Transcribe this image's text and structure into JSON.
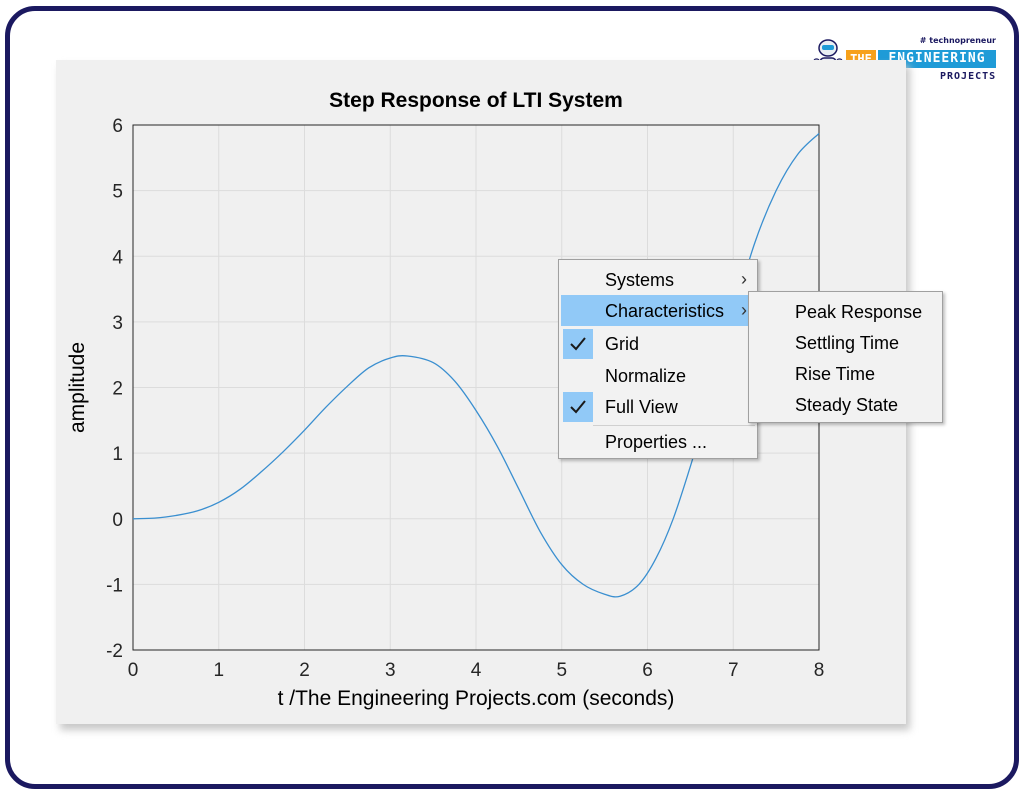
{
  "logo": {
    "tagline": "# technopreneur",
    "the": "THE",
    "engineering": "ENGINEERING",
    "projects": "PROJECTS"
  },
  "chart_data": {
    "type": "line",
    "title": "Step Response of LTI System",
    "xlabel": "t /The Engineering Projects.com (seconds)",
    "ylabel": "amplitude",
    "xlim": [
      0,
      8
    ],
    "ylim": [
      -2,
      6
    ],
    "xticks": [
      "0",
      "1",
      "2",
      "3",
      "4",
      "5",
      "6",
      "7",
      "8"
    ],
    "yticks": [
      "-2",
      "-1",
      "0",
      "1",
      "2",
      "3",
      "4",
      "5",
      "6"
    ],
    "grid": true,
    "line_color": "#3a8fd0",
    "series": [
      {
        "x": [
          0,
          0.25,
          0.5,
          0.75,
          1,
          1.25,
          1.5,
          1.75,
          2,
          2.25,
          2.5,
          2.75,
          3,
          3.2,
          3.5,
          3.75,
          4,
          4.25,
          4.5,
          4.75,
          5,
          5.25,
          5.5,
          5.68,
          5.9,
          6.1,
          6.3,
          6.5,
          6.75,
          7,
          7.25,
          7.5,
          7.75,
          8
        ],
        "y": [
          0,
          0.01,
          0.05,
          0.12,
          0.25,
          0.45,
          0.72,
          1.02,
          1.35,
          1.7,
          2.02,
          2.3,
          2.45,
          2.48,
          2.38,
          2.1,
          1.65,
          1.1,
          0.45,
          -0.2,
          -0.7,
          -1.0,
          -1.15,
          -1.18,
          -1.0,
          -0.6,
          0.0,
          0.8,
          1.9,
          3.1,
          4.2,
          5.0,
          5.55,
          5.87
        ]
      }
    ]
  },
  "menu": {
    "items": [
      {
        "label": "Systems",
        "submenu": true,
        "checked": false
      },
      {
        "label": "Characteristics",
        "submenu": true,
        "checked": false,
        "highlighted": true
      },
      {
        "label": "Grid",
        "checked": true
      },
      {
        "label": "Normalize",
        "checked": false
      },
      {
        "label": "Full View",
        "checked": true
      },
      {
        "label": "Properties ...",
        "checked": false
      }
    ],
    "submenu_items": [
      "Peak Response",
      "Settling Time",
      "Rise Time",
      "Steady State"
    ],
    "arrow_glyph": "›",
    "check_glyph": "✓"
  }
}
